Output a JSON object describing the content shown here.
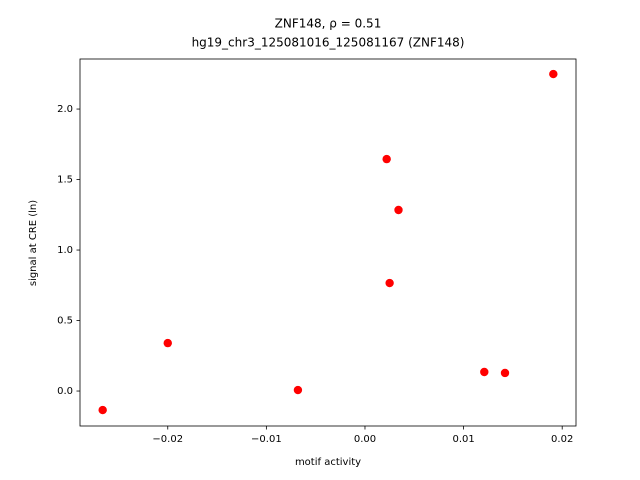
{
  "chart_data": {
    "type": "scatter",
    "title": "ZNF148, ρ = 0.51",
    "subtitle": "hg19_chr3_125081016_125081167 (ZNF148)",
    "x_label": "motif activity",
    "y_label": "signal at CRE (ln)",
    "color": "#ff0000",
    "x": [
      -0.0266,
      -0.02,
      -0.0068,
      0.0022,
      0.0025,
      0.0034,
      0.0121,
      0.0142,
      0.0191
    ],
    "values": [
      -0.135,
      0.34,
      0.007,
      1.645,
      0.766,
      1.284,
      0.135,
      0.128,
      2.248
    ],
    "xlim": [
      -0.0289,
      0.0214
    ],
    "ylim": [
      -0.248,
      2.355
    ],
    "xticks": [
      {
        "value": -0.02,
        "label": "−0.02"
      },
      {
        "value": -0.01,
        "label": "−0.01"
      },
      {
        "value": 0,
        "label": "0.00"
      },
      {
        "value": 0.01,
        "label": "0.01"
      },
      {
        "value": 0.02,
        "label": "0.02"
      }
    ],
    "yticks": [
      {
        "value": 0,
        "label": "0.0"
      },
      {
        "value": 0.5,
        "label": "0.5"
      },
      {
        "value": 1,
        "label": "1.0"
      },
      {
        "value": 1.5,
        "label": "1.5"
      },
      {
        "value": 2,
        "label": "2.0"
      }
    ],
    "grid": false
  }
}
